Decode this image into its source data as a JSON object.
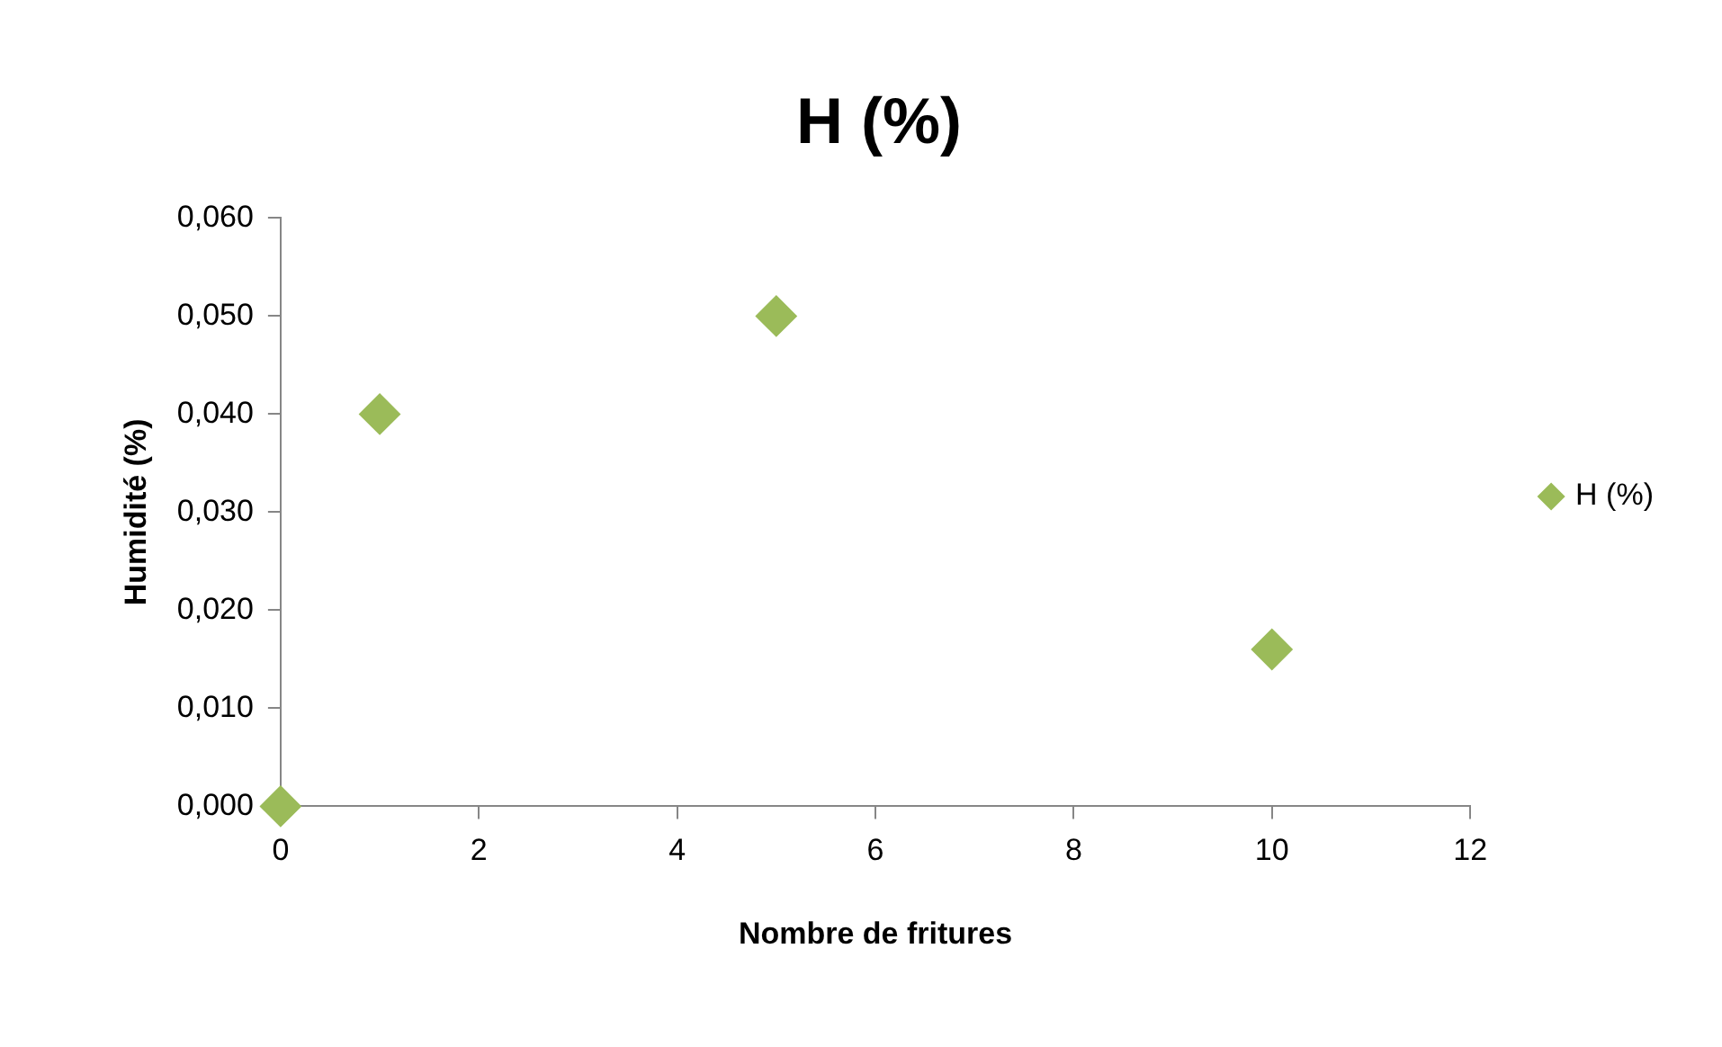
{
  "chart_data": {
    "type": "scatter",
    "title": "H (%)",
    "xlabel": "Nombre de fritures",
    "ylabel": "Humidité (%)",
    "series": [
      {
        "name": "H (%)",
        "color": "#9bbb59",
        "x": [
          0,
          1,
          5,
          10
        ],
        "values": [
          0,
          0.04,
          0.05,
          0.016
        ]
      }
    ],
    "xlim": [
      0,
      12
    ],
    "xticks": [
      0,
      2,
      4,
      6,
      8,
      10,
      12
    ],
    "ylim": [
      0,
      0.06
    ],
    "yticks": [
      {
        "value": 0,
        "label": "0,000"
      },
      {
        "value": 0.01,
        "label": "0,010"
      },
      {
        "value": 0.02,
        "label": "0,020"
      },
      {
        "value": 0.03,
        "label": "0,030"
      },
      {
        "value": 0.04,
        "label": "0,040"
      },
      {
        "value": 0.05,
        "label": "0,050"
      },
      {
        "value": 0.06,
        "label": "0,060"
      }
    ],
    "grid": false,
    "legend": "right",
    "marker": "diamond"
  }
}
